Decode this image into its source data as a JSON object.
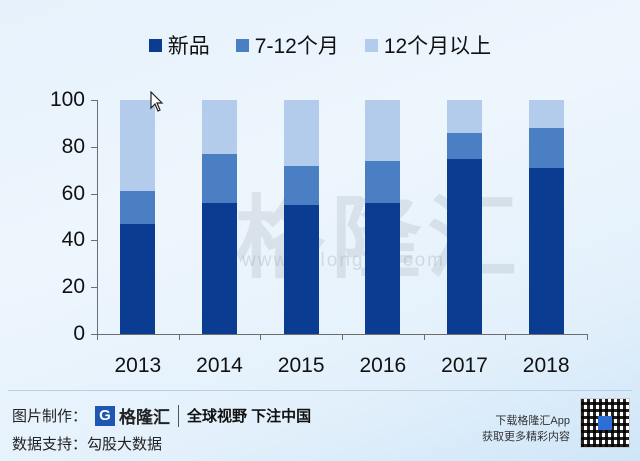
{
  "chart_data": {
    "type": "bar",
    "stacked": true,
    "title": "",
    "xlabel": "",
    "ylabel": "",
    "ylim": [
      0,
      100
    ],
    "yticks": [
      0,
      20,
      40,
      60,
      80,
      100
    ],
    "categories": [
      "2013",
      "2014",
      "2015",
      "2016",
      "2017",
      "2018"
    ],
    "series": [
      {
        "name": "新品",
        "color": "#0a3d91",
        "values": [
          47,
          56,
          55,
          56,
          75,
          71
        ]
      },
      {
        "name": "7-12个月",
        "color": "#4a7fc4",
        "values": [
          14,
          21,
          17,
          18,
          11,
          17
        ]
      },
      {
        "name": "12个月以上",
        "color": "#b3cceb",
        "values": [
          39,
          23,
          28,
          26,
          14,
          12
        ]
      }
    ],
    "legend_position": "top",
    "grid": false
  },
  "legend": [
    {
      "label": "新品",
      "color": "#0a3d91"
    },
    {
      "label": "7-12个月",
      "color": "#4a7fc4"
    },
    {
      "label": "12个月以上",
      "color": "#b3cceb"
    }
  ],
  "watermark": {
    "text": "格隆汇",
    "url_text": "www.gelonghui.com"
  },
  "footer": {
    "made_by_label": "图片制作：",
    "logo_text": "格隆汇",
    "slogan": "全球视野 下注中国",
    "data_label": "数据支持：",
    "data_source": "勾股大数据",
    "download_line1": "下载格隆汇App",
    "download_line2": "获取更多精彩内容"
  }
}
